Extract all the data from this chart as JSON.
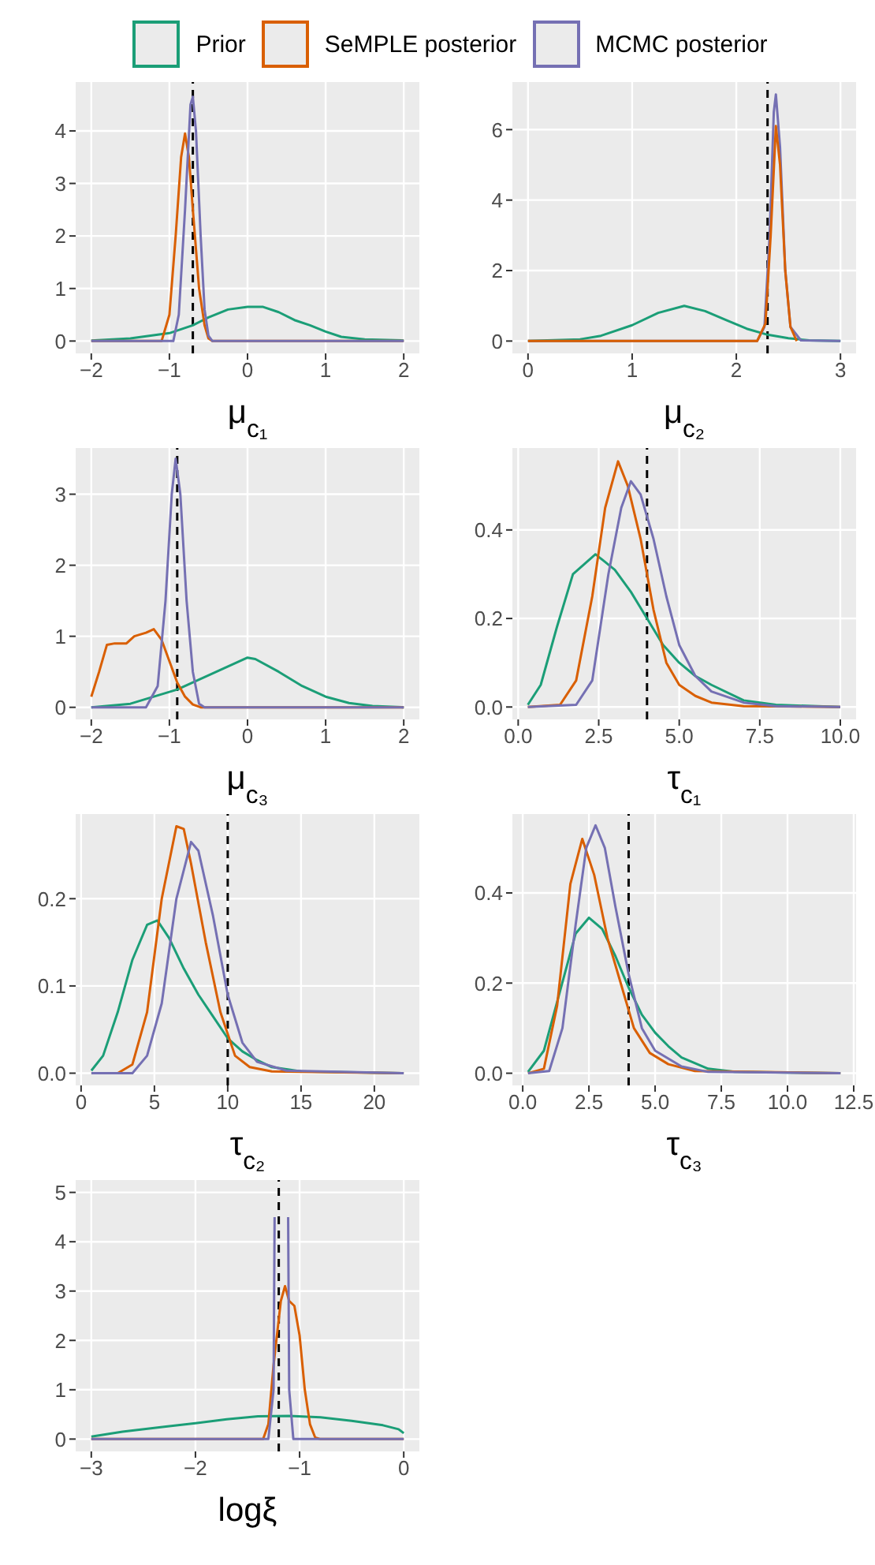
{
  "chart_data": [
    {
      "type": "line",
      "xlabel": "μ$_{c₁}$",
      "legend": "top",
      "grid": true,
      "xlim": [
        -2.2,
        2.2
      ],
      "xticks": [
        -2,
        -1,
        0,
        1,
        2
      ],
      "ylim": [
        -0.235,
        4.93
      ],
      "yticks": [
        0,
        1,
        2,
        3,
        4
      ],
      "ref_lines": [
        {
          "axis": "x",
          "value": -0.7,
          "color": "#000000",
          "line_style": "dashed"
        }
      ],
      "series": [
        {
          "name": "Prior",
          "color": "#1b9e77",
          "x": [
            -2,
            -1.5,
            -1,
            -0.7,
            -0.5,
            -0.25,
            0,
            0.2,
            0.4,
            0.6,
            0.8,
            1,
            1.2,
            1.5,
            2
          ],
          "values": [
            0.01,
            0.05,
            0.15,
            0.3,
            0.45,
            0.6,
            0.65,
            0.65,
            0.55,
            0.4,
            0.3,
            0.18,
            0.08,
            0.03,
            0.01
          ]
        },
        {
          "name": "SeMPLE posterior",
          "color": "#d95f02",
          "x": [
            -2,
            -1.1,
            -1,
            -0.92,
            -0.85,
            -0.8,
            -0.75,
            -0.7,
            -0.62,
            -0.55,
            -0.5,
            -0.45,
            2
          ],
          "values": [
            0,
            0,
            0.5,
            2,
            3.5,
            3.95,
            3.5,
            2.5,
            1,
            0.3,
            0.05,
            0,
            0
          ]
        },
        {
          "name": "MCMC posterior",
          "color": "#7570b3",
          "x": [
            -2,
            -0.95,
            -0.88,
            -0.8,
            -0.73,
            -0.7,
            -0.66,
            -0.6,
            -0.55,
            -0.5,
            -0.45,
            2
          ],
          "values": [
            0,
            0,
            0.5,
            2.5,
            4.5,
            4.65,
            4,
            2,
            0.6,
            0.1,
            0,
            0
          ]
        }
      ]
    },
    {
      "type": "line",
      "xlabel": "μ$_{c₂}$",
      "grid": true,
      "xlim": [
        -0.15,
        3.15
      ],
      "xticks": [
        0,
        1,
        2,
        3
      ],
      "ylim": [
        -0.35,
        7.35
      ],
      "yticks": [
        0,
        2,
        4,
        6
      ],
      "ref_lines": [
        {
          "axis": "x",
          "value": 2.3,
          "color": "#000000",
          "line_style": "dashed"
        }
      ],
      "series": [
        {
          "color": "#1b9e77",
          "x": [
            0,
            0.5,
            0.7,
            1,
            1.25,
            1.5,
            1.7,
            1.9,
            2.1,
            2.3,
            2.5,
            2.7,
            3
          ],
          "values": [
            0,
            0.05,
            0.15,
            0.45,
            0.8,
            1,
            0.85,
            0.6,
            0.35,
            0.18,
            0.08,
            0.02,
            0
          ]
        },
        {
          "color": "#7570b3",
          "x": [
            0,
            2.2,
            2.27,
            2.32,
            2.36,
            2.38,
            2.42,
            2.47,
            2.52,
            2.62,
            3
          ],
          "values": [
            0,
            0,
            0.4,
            3,
            6.5,
            7,
            5.5,
            2,
            0.4,
            0.02,
            0
          ]
        },
        {
          "color": "#d95f02",
          "x": [
            0,
            2.2,
            2.28,
            2.33,
            2.38,
            2.42,
            2.47,
            2.52,
            2.58
          ],
          "values": [
            0,
            0,
            0.5,
            3,
            6.1,
            5,
            2,
            0.4,
            0
          ]
        }
      ]
    },
    {
      "type": "line",
      "xlabel": "μ$_{c₃}$",
      "grid": true,
      "xlim": [
        -2.2,
        2.2
      ],
      "xticks": [
        -2,
        -1,
        0,
        1,
        2
      ],
      "ylim": [
        -0.17,
        3.65
      ],
      "yticks": [
        0,
        1,
        2,
        3
      ],
      "ref_lines": [
        {
          "axis": "x",
          "value": -0.9,
          "color": "#000000",
          "line_style": "dashed"
        }
      ],
      "series": [
        {
          "color": "#1b9e77",
          "x": [
            -2,
            -1.5,
            -1.2,
            -0.9,
            -0.6,
            -0.3,
            0,
            0.1,
            0.4,
            0.7,
            1,
            1.3,
            1.6,
            2
          ],
          "values": [
            0,
            0.05,
            0.15,
            0.25,
            0.4,
            0.55,
            0.7,
            0.68,
            0.5,
            0.3,
            0.15,
            0.06,
            0.02,
            0
          ]
        },
        {
          "color": "#d95f02",
          "x": [
            -2,
            -1.9,
            -1.8,
            -1.7,
            -1.55,
            -1.45,
            -1.3,
            -1.2,
            -1.1,
            -1,
            -0.9,
            -0.8,
            -0.7,
            -0.6,
            2
          ],
          "values": [
            0.15,
            0.5,
            0.88,
            0.9,
            0.9,
            1,
            1.05,
            1.1,
            0.95,
            0.65,
            0.35,
            0.15,
            0.04,
            0,
            0
          ]
        },
        {
          "color": "#7570b3",
          "x": [
            -2,
            -1.3,
            -1.15,
            -1.05,
            -0.97,
            -0.92,
            -0.86,
            -0.78,
            -0.7,
            -0.62,
            -0.55,
            2
          ],
          "values": [
            0,
            0,
            0.3,
            1.5,
            3,
            3.5,
            3,
            1.5,
            0.5,
            0.05,
            0,
            0
          ]
        }
      ]
    },
    {
      "type": "line",
      "xlabel": "τ$_{c₁}$",
      "grid": true,
      "xlim": [
        -0.18,
        10.49
      ],
      "xticks": [
        {
          "value": 0,
          "label": "0.0"
        },
        {
          "value": 2.5,
          "label": "2.5"
        },
        {
          "value": 5,
          "label": "5.0"
        },
        {
          "value": 7.5,
          "label": "7.5"
        },
        {
          "value": 10,
          "label": "10.0"
        }
      ],
      "ylim": [
        -0.028,
        0.585
      ],
      "yticks": [
        {
          "value": 0,
          "label": "0.0"
        },
        {
          "value": 0.2,
          "label": "0.2"
        },
        {
          "value": 0.4,
          "label": "0.4"
        }
      ],
      "ref_lines": [
        {
          "axis": "x",
          "value": 4,
          "color": "#000000",
          "line_style": "dashed"
        }
      ],
      "series": [
        {
          "color": "#1b9e77",
          "x": [
            0.3,
            0.7,
            1.2,
            1.7,
            2.4,
            3,
            3.5,
            4,
            4.5,
            5,
            5.5,
            6,
            7,
            8,
            10
          ],
          "values": [
            0.005,
            0.05,
            0.18,
            0.3,
            0.345,
            0.31,
            0.26,
            0.2,
            0.14,
            0.1,
            0.07,
            0.05,
            0.015,
            0.005,
            0
          ]
        },
        {
          "color": "#d95f02",
          "x": [
            0.3,
            1.3,
            1.8,
            2.3,
            2.7,
            3.1,
            3.4,
            3.8,
            4.2,
            4.6,
            5,
            5.5,
            6,
            7,
            10
          ],
          "values": [
            0,
            0.005,
            0.06,
            0.25,
            0.45,
            0.555,
            0.5,
            0.38,
            0.22,
            0.1,
            0.05,
            0.025,
            0.01,
            0.002,
            0
          ]
        },
        {
          "color": "#7570b3",
          "x": [
            0.3,
            1.8,
            2.3,
            2.8,
            3.2,
            3.5,
            3.8,
            4.2,
            4.6,
            5,
            5.5,
            6,
            7,
            8,
            10
          ],
          "values": [
            0,
            0.005,
            0.06,
            0.3,
            0.45,
            0.51,
            0.48,
            0.38,
            0.25,
            0.14,
            0.07,
            0.035,
            0.01,
            0.002,
            0
          ]
        }
      ]
    },
    {
      "type": "line",
      "xlabel": "τ$_{c₂}$",
      "grid": true,
      "xlim": [
        -0.37,
        23.07
      ],
      "xticks": [
        0,
        5,
        10,
        15,
        20
      ],
      "ylim": [
        -0.014,
        0.297
      ],
      "yticks": [
        {
          "value": 0,
          "label": "0.0"
        },
        {
          "value": 0.1,
          "label": "0.1"
        },
        {
          "value": 0.2,
          "label": "0.2"
        }
      ],
      "ref_lines": [
        {
          "axis": "x",
          "value": 10,
          "color": "#000000",
          "line_style": "dashed"
        }
      ],
      "series": [
        {
          "color": "#1b9e77",
          "x": [
            0.7,
            1.5,
            2.5,
            3.5,
            4.5,
            5.2,
            6,
            7,
            8,
            9,
            10,
            11,
            12,
            13,
            15,
            22
          ],
          "values": [
            0.003,
            0.02,
            0.07,
            0.13,
            0.17,
            0.175,
            0.155,
            0.12,
            0.09,
            0.065,
            0.04,
            0.025,
            0.015,
            0.007,
            0.002,
            0
          ]
        },
        {
          "color": "#d95f02",
          "x": [
            0.7,
            2.5,
            3.5,
            4.5,
            5.5,
            6.5,
            7,
            7.5,
            8.5,
            9.5,
            10.5,
            11.5,
            13,
            22
          ],
          "values": [
            0,
            0,
            0.01,
            0.07,
            0.2,
            0.283,
            0.28,
            0.24,
            0.15,
            0.07,
            0.02,
            0.007,
            0.002,
            0
          ]
        },
        {
          "color": "#7570b3",
          "x": [
            0.7,
            3.5,
            4.5,
            5.5,
            6.5,
            7.5,
            8,
            9,
            10,
            11,
            12,
            14,
            22
          ],
          "values": [
            0,
            0,
            0.02,
            0.08,
            0.2,
            0.265,
            0.255,
            0.18,
            0.09,
            0.035,
            0.013,
            0.003,
            0
          ]
        }
      ]
    },
    {
      "type": "line",
      "xlabel": "τ$_{c₃}$",
      "grid": true,
      "xlim": [
        -0.39,
        12.59
      ],
      "xticks": [
        {
          "value": 0,
          "label": "0.0"
        },
        {
          "value": 2.5,
          "label": "2.5"
        },
        {
          "value": 5,
          "label": "5.0"
        },
        {
          "value": 7.5,
          "label": "7.5"
        },
        {
          "value": 10,
          "label": "10.0"
        },
        {
          "value": 12.5,
          "label": "12.5"
        }
      ],
      "ylim": [
        -0.027,
        0.575
      ],
      "yticks": [
        {
          "value": 0,
          "label": "0.0"
        },
        {
          "value": 0.2,
          "label": "0.2"
        },
        {
          "value": 0.4,
          "label": "0.4"
        }
      ],
      "ref_lines": [
        {
          "axis": "x",
          "value": 4,
          "color": "#000000",
          "line_style": "dashed"
        }
      ],
      "series": [
        {
          "color": "#1b9e77",
          "x": [
            0.2,
            0.8,
            1.4,
            2,
            2.5,
            3,
            3.5,
            4,
            4.5,
            5,
            5.5,
            6,
            7,
            8,
            12
          ],
          "values": [
            0.003,
            0.05,
            0.18,
            0.31,
            0.345,
            0.32,
            0.26,
            0.19,
            0.13,
            0.09,
            0.06,
            0.035,
            0.01,
            0.003,
            0
          ]
        },
        {
          "color": "#d95f02",
          "x": [
            0.2,
            0.8,
            1.3,
            1.8,
            2.25,
            2.7,
            3.2,
            3.7,
            4.2,
            4.8,
            5.5,
            6.5,
            12
          ],
          "values": [
            0,
            0.01,
            0.15,
            0.42,
            0.52,
            0.44,
            0.3,
            0.2,
            0.1,
            0.045,
            0.02,
            0.005,
            0
          ]
        },
        {
          "color": "#7570b3",
          "x": [
            0.2,
            1,
            1.5,
            2,
            2.4,
            2.75,
            3.1,
            3.5,
            4,
            4.5,
            5,
            6,
            7,
            12
          ],
          "values": [
            0,
            0.005,
            0.1,
            0.33,
            0.5,
            0.55,
            0.5,
            0.37,
            0.22,
            0.1,
            0.05,
            0.015,
            0.003,
            0
          ]
        }
      ]
    },
    {
      "type": "line",
      "xlabel": "logξ",
      "grid": true,
      "xlim": [
        -3.15,
        0.15
      ],
      "xticks": [
        -3,
        -2,
        -1,
        0
      ],
      "ylim": [
        -0.25,
        5.25
      ],
      "yticks": [
        0,
        1,
        2,
        3,
        4,
        5
      ],
      "ref_lines": [
        {
          "axis": "x",
          "value": -1.2,
          "color": "#000000",
          "line_style": "dashed"
        }
      ],
      "series": [
        {
          "color": "#1b9e77",
          "x": [
            -3,
            -2.7,
            -2.3,
            -2,
            -1.7,
            -1.4,
            -1.1,
            -0.8,
            -0.5,
            -0.2,
            -0.05,
            0
          ],
          "values": [
            0.05,
            0.15,
            0.25,
            0.32,
            0.4,
            0.46,
            0.47,
            0.44,
            0.37,
            0.28,
            0.2,
            0.12
          ]
        },
        {
          "color": "#d95f02",
          "x": [
            -3,
            -1.35,
            -1.3,
            -1.25,
            -1.18,
            -1.14,
            -1.1,
            -1.05,
            -1,
            -0.95,
            -0.9,
            -0.85,
            -0.8,
            0
          ],
          "values": [
            0,
            0,
            0.3,
            1.5,
            2.8,
            3.1,
            2.8,
            2.7,
            2.1,
            1,
            0.3,
            0.03,
            0,
            0
          ]
        },
        {
          "color": "#7570b3",
          "x": [
            -3,
            -1.3,
            -1.25,
            -1.24,
            -1.175,
            -1.11,
            -1.1,
            -1.06,
            0
          ],
          "values": [
            0,
            0,
            1,
            4.5,
            null,
            4.5,
            1,
            0,
            0
          ]
        }
      ]
    }
  ]
}
